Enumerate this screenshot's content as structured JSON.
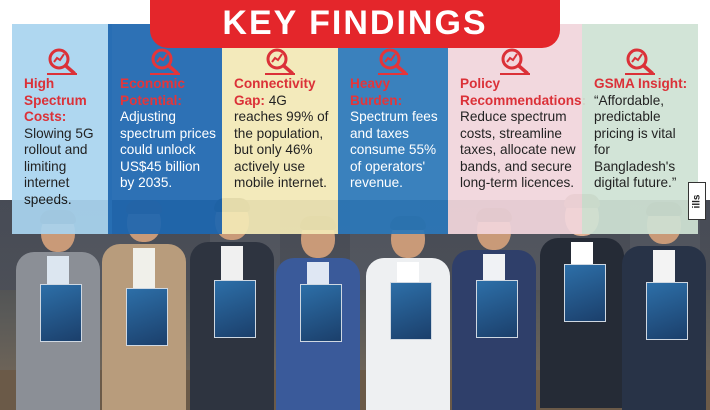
{
  "header": {
    "title": "KEY FINDINGS"
  },
  "colors": {
    "header_red": "#e4262b",
    "highlight_red": "#d9222a",
    "panel_1": "#a9d4ef",
    "panel_2": "#1e67b0",
    "panel_3": "#f3e9b6",
    "panel_4": "#2c78b9",
    "panel_5": "#f2d6dc",
    "panel_6": "#cfe2d4"
  },
  "panels": [
    {
      "heading": "High Spectrum Costs:",
      "body": "Slowing 5G rollout and limiting internet speeds.",
      "icon": "search-chart-icon"
    },
    {
      "heading": "Economic Potential:",
      "body": "Adjusting spectrum prices could unlock US$45 billion by 2035.",
      "icon": "search-chart-icon"
    },
    {
      "heading": "Connectivity Gap:",
      "body": "4G reaches 99% of the population, but only 46% actively use mobile internet.",
      "icon": "search-chart-icon"
    },
    {
      "heading": "Heavy Burden:",
      "body": "Spectrum fees and taxes consume 55% of operators' revenue.",
      "icon": "search-chart-icon"
    },
    {
      "heading": "Policy Recommendations:",
      "body": "Reduce spectrum costs, streamline taxes, allocate new bands, and secure long-term licences.",
      "icon": "search-chart-icon"
    },
    {
      "heading": "GSMA Insight:",
      "body": "“Affordable, predictable pricing is vital for Bangladesh's digital future.”",
      "icon": "search-chart-icon"
    }
  ],
  "watermark": "ills"
}
